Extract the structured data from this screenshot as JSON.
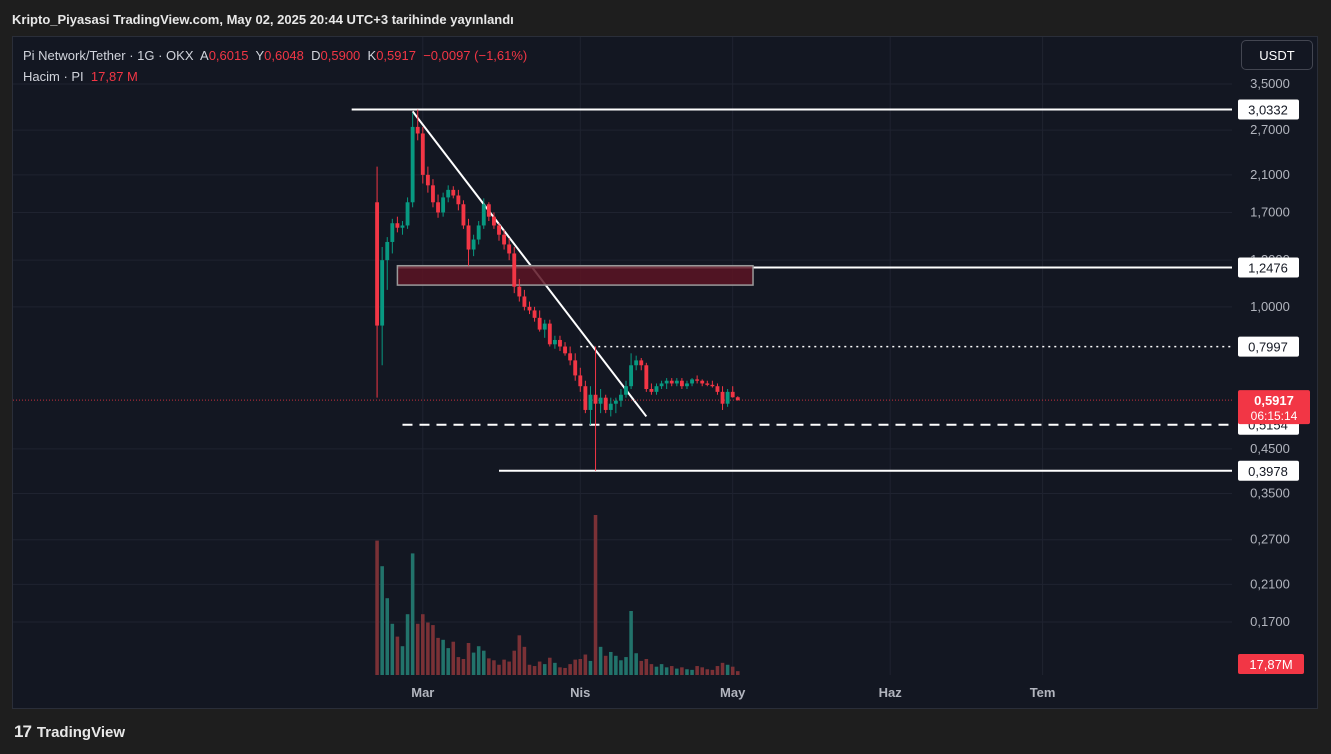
{
  "publish_line": "Kripto_Piyasasi TradingView.com, May 02, 2025 20:44 UTC+3 tarihinde yayınlandı",
  "legend": {
    "symbol": "Pi Network/Tether · 1G · OKX",
    "o_label": "A",
    "o": "0,6015",
    "h_label": "Y",
    "h": "0,6048",
    "l_label": "D",
    "l": "0,5900",
    "c_label": "K",
    "c": "0,5917",
    "change": "−0,0097 (−1,61%)",
    "volume_label": "Hacim · PI",
    "volume": "17,87 M"
  },
  "currency_button": "USDT",
  "footer_brand": "TradingView",
  "colors": {
    "background": "#131722",
    "up": "#089981",
    "down": "#f23645",
    "up_volume": "#22736b",
    "down_volume": "#7a3136",
    "axis_text": "#b2b5be",
    "drawing": "#ffffff",
    "zone_fill": "#5c1423"
  },
  "chart_data": {
    "type": "candlestick",
    "title": "Pi Network/Tether · 1G · OKX",
    "y_scale": "log",
    "y_ticks": [
      {
        "v": 3.5,
        "label": "3,5000"
      },
      {
        "v": 2.7,
        "label": "2,7000"
      },
      {
        "v": 2.1,
        "label": "2,1000"
      },
      {
        "v": 1.7,
        "label": "1,7000"
      },
      {
        "v": 1.3,
        "label": "1,3000"
      },
      {
        "v": 1.0,
        "label": "1,0000"
      },
      {
        "v": 0.45,
        "label": "0,4500"
      },
      {
        "v": 0.35,
        "label": "0,3500"
      },
      {
        "v": 0.27,
        "label": "0,2700"
      },
      {
        "v": 0.21,
        "label": "0,2100"
      },
      {
        "v": 0.17,
        "label": "0,1700"
      }
    ],
    "x_ticks": [
      {
        "date": "2025-03-01",
        "label": "Mar"
      },
      {
        "date": "2025-04-01",
        "label": "Nis"
      },
      {
        "date": "2025-05-01",
        "label": "May"
      },
      {
        "date": "2025-06-01",
        "label": "Haz"
      },
      {
        "date": "2025-07-01",
        "label": "Tem"
      }
    ],
    "price_labels": [
      {
        "v": 3.0332,
        "label": "3,0332"
      },
      {
        "v": 1.2476,
        "label": "1,2476"
      },
      {
        "v": 0.7997,
        "label": "0,7997"
      },
      {
        "v": 0.5154,
        "label": "0,5154"
      },
      {
        "v": 0.3978,
        "label": "0,3978"
      }
    ],
    "last_price": {
      "v": 0.5917,
      "label": "0,5917",
      "countdown": "06:15:14"
    },
    "volume_label": "17,87M",
    "drawings": [
      {
        "kind": "hline",
        "v": 3.0332,
        "from": "2025-02-15",
        "style": "solid"
      },
      {
        "kind": "hline",
        "v": 1.2476,
        "from": "2025-02-24",
        "style": "solid"
      },
      {
        "kind": "hline",
        "v": 0.7997,
        "from": "2025-04-01",
        "style": "dotted"
      },
      {
        "kind": "hline",
        "v": 0.5154,
        "from": "2025-02-25",
        "style": "dashed"
      },
      {
        "kind": "hline",
        "v": 0.3978,
        "from": "2025-03-16",
        "style": "solid"
      },
      {
        "kind": "trendline",
        "from": {
          "date": "2025-02-27",
          "v": 3.0
        },
        "to": {
          "date": "2025-04-14",
          "v": 0.54
        }
      },
      {
        "kind": "zone",
        "from": "2025-02-24",
        "to": "2025-05-05",
        "top": 1.26,
        "bottom": 1.13
      }
    ],
    "candles": [
      [
        "2025-02-20",
        1.8,
        2.2,
        0.6,
        0.9,
        210
      ],
      [
        "2025-02-21",
        0.9,
        1.4,
        0.72,
        1.3,
        170
      ],
      [
        "2025-02-22",
        1.3,
        1.48,
        1.1,
        1.44,
        120
      ],
      [
        "2025-02-23",
        1.44,
        1.64,
        1.35,
        1.6,
        80
      ],
      [
        "2025-02-24",
        1.6,
        1.66,
        1.52,
        1.56,
        60
      ],
      [
        "2025-02-25",
        1.56,
        1.62,
        1.5,
        1.58,
        45
      ],
      [
        "2025-02-26",
        1.58,
        1.85,
        1.55,
        1.8,
        95
      ],
      [
        "2025-02-27",
        1.8,
        2.98,
        1.75,
        2.75,
        190
      ],
      [
        "2025-02-28",
        2.75,
        3.03,
        2.55,
        2.65,
        80
      ],
      [
        "2025-03-01",
        2.65,
        2.75,
        2.0,
        2.1,
        95
      ],
      [
        "2025-03-02",
        2.1,
        2.2,
        1.9,
        1.98,
        82
      ],
      [
        "2025-03-03",
        1.98,
        2.05,
        1.75,
        1.8,
        78
      ],
      [
        "2025-03-04",
        1.8,
        1.88,
        1.65,
        1.7,
        58
      ],
      [
        "2025-03-05",
        1.7,
        1.9,
        1.66,
        1.85,
        55
      ],
      [
        "2025-03-06",
        1.85,
        1.98,
        1.8,
        1.93,
        42
      ],
      [
        "2025-03-07",
        1.93,
        1.97,
        1.84,
        1.87,
        52
      ],
      [
        "2025-03-08",
        1.87,
        1.93,
        1.72,
        1.78,
        28
      ],
      [
        "2025-03-09",
        1.78,
        1.82,
        1.55,
        1.58,
        25
      ],
      [
        "2025-03-10",
        1.58,
        1.64,
        1.26,
        1.38,
        50
      ],
      [
        "2025-03-11",
        1.38,
        1.5,
        1.33,
        1.46,
        35
      ],
      [
        "2025-03-12",
        1.46,
        1.62,
        1.42,
        1.58,
        45
      ],
      [
        "2025-03-13",
        1.58,
        1.84,
        1.55,
        1.78,
        38
      ],
      [
        "2025-03-14",
        1.78,
        1.8,
        1.62,
        1.66,
        26
      ],
      [
        "2025-03-15",
        1.66,
        1.7,
        1.55,
        1.58,
        23
      ],
      [
        "2025-03-16",
        1.58,
        1.6,
        1.45,
        1.5,
        16
      ],
      [
        "2025-03-17",
        1.5,
        1.54,
        1.38,
        1.42,
        24
      ],
      [
        "2025-03-18",
        1.42,
        1.47,
        1.3,
        1.35,
        21
      ],
      [
        "2025-03-19",
        1.35,
        1.4,
        1.08,
        1.12,
        38
      ],
      [
        "2025-03-20",
        1.12,
        1.17,
        1.03,
        1.06,
        62
      ],
      [
        "2025-03-21",
        1.06,
        1.1,
        0.98,
        1.0,
        44
      ],
      [
        "2025-03-22",
        1.0,
        1.03,
        0.96,
        0.98,
        16
      ],
      [
        "2025-03-23",
        0.98,
        1.0,
        0.92,
        0.94,
        14
      ],
      [
        "2025-03-24",
        0.94,
        0.98,
        0.87,
        0.88,
        21
      ],
      [
        "2025-03-25",
        0.88,
        0.93,
        0.84,
        0.91,
        17
      ],
      [
        "2025-03-26",
        0.91,
        0.93,
        0.8,
        0.81,
        27
      ],
      [
        "2025-03-27",
        0.81,
        0.85,
        0.79,
        0.83,
        19
      ],
      [
        "2025-03-28",
        0.83,
        0.85,
        0.78,
        0.8,
        12
      ],
      [
        "2025-03-29",
        0.8,
        0.82,
        0.76,
        0.77,
        11
      ],
      [
        "2025-03-30",
        0.77,
        0.8,
        0.72,
        0.74,
        17
      ],
      [
        "2025-03-31",
        0.74,
        0.77,
        0.66,
        0.68,
        24
      ],
      [
        "2025-04-01",
        0.68,
        0.71,
        0.62,
        0.64,
        25
      ],
      [
        "2025-04-02",
        0.64,
        0.66,
        0.55,
        0.56,
        32
      ],
      [
        "2025-04-03",
        0.56,
        0.64,
        0.515,
        0.61,
        22
      ],
      [
        "2025-04-04",
        0.61,
        0.8,
        0.398,
        0.58,
        250
      ],
      [
        "2025-04-05",
        0.58,
        0.63,
        0.55,
        0.6,
        44
      ],
      [
        "2025-04-06",
        0.6,
        0.61,
        0.55,
        0.56,
        30
      ],
      [
        "2025-04-07",
        0.56,
        0.6,
        0.54,
        0.58,
        36
      ],
      [
        "2025-04-08",
        0.58,
        0.6,
        0.55,
        0.59,
        30
      ],
      [
        "2025-04-09",
        0.59,
        0.63,
        0.57,
        0.61,
        23
      ],
      [
        "2025-04-10",
        0.61,
        0.66,
        0.6,
        0.64,
        28
      ],
      [
        "2025-04-11",
        0.64,
        0.77,
        0.63,
        0.72,
        100
      ],
      [
        "2025-04-12",
        0.72,
        0.76,
        0.7,
        0.74,
        34
      ],
      [
        "2025-04-13",
        0.74,
        0.75,
        0.7,
        0.72,
        22
      ],
      [
        "2025-04-14",
        0.72,
        0.73,
        0.62,
        0.63,
        25
      ],
      [
        "2025-04-15",
        0.63,
        0.65,
        0.61,
        0.62,
        17
      ],
      [
        "2025-04-16",
        0.62,
        0.65,
        0.61,
        0.64,
        13
      ],
      [
        "2025-04-17",
        0.64,
        0.66,
        0.63,
        0.65,
        17
      ],
      [
        "2025-04-18",
        0.65,
        0.67,
        0.63,
        0.66,
        12
      ],
      [
        "2025-04-19",
        0.66,
        0.67,
        0.64,
        0.65,
        14
      ],
      [
        "2025-04-20",
        0.65,
        0.67,
        0.64,
        0.66,
        10
      ],
      [
        "2025-04-21",
        0.66,
        0.67,
        0.63,
        0.64,
        12
      ],
      [
        "2025-04-22",
        0.64,
        0.66,
        0.63,
        0.65,
        9
      ],
      [
        "2025-04-23",
        0.65,
        0.67,
        0.64,
        0.665,
        8
      ],
      [
        "2025-04-24",
        0.665,
        0.68,
        0.65,
        0.66,
        14
      ],
      [
        "2025-04-25",
        0.66,
        0.665,
        0.64,
        0.65,
        12
      ],
      [
        "2025-04-26",
        0.65,
        0.66,
        0.64,
        0.645,
        9
      ],
      [
        "2025-04-27",
        0.645,
        0.66,
        0.635,
        0.64,
        8
      ],
      [
        "2025-04-28",
        0.64,
        0.65,
        0.61,
        0.62,
        14
      ],
      [
        "2025-04-29",
        0.62,
        0.64,
        0.56,
        0.58,
        19
      ],
      [
        "2025-04-30",
        0.58,
        0.63,
        0.57,
        0.62,
        16
      ],
      [
        "2025-05-01",
        0.62,
        0.64,
        0.6,
        0.6014,
        13
      ],
      [
        "2025-05-02",
        0.6015,
        0.6048,
        0.59,
        0.5917,
        6
      ]
    ]
  }
}
